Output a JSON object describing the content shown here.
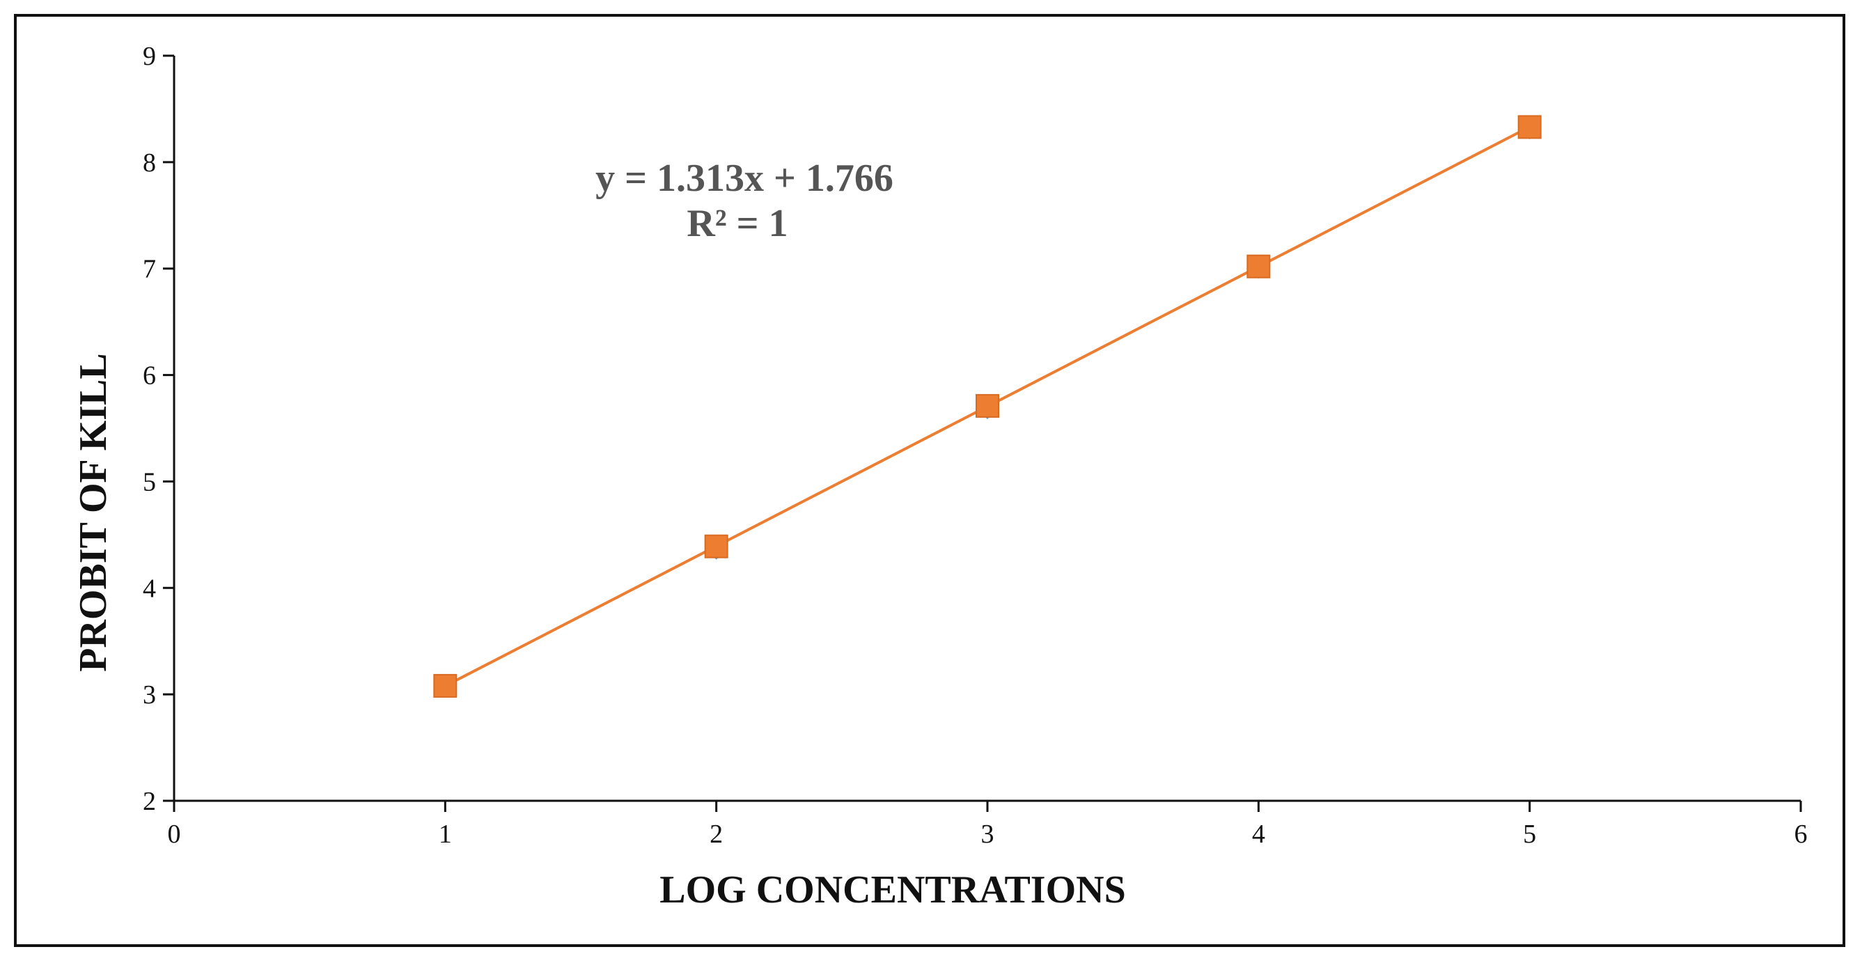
{
  "chart_data": {
    "type": "scatter",
    "xlabel": "LOG CONCENTRATIONS",
    "ylabel": "PROBIT OF KILL",
    "xlim": [
      0,
      6
    ],
    "ylim": [
      2,
      9
    ],
    "xticks": [
      "0",
      "1",
      "2",
      "3",
      "4",
      "5",
      "6"
    ],
    "yticks": [
      "2",
      "3",
      "4",
      "5",
      "6",
      "7",
      "8",
      "9"
    ],
    "grid": false,
    "legend": "none",
    "series": [
      {
        "marker": "diamond",
        "color": "#5b9bd5",
        "x": [
          1,
          2,
          3,
          4,
          5
        ],
        "y": [
          3.08,
          4.37,
          5.69,
          7.01,
          8.32
        ]
      },
      {
        "marker": "square",
        "color": "#ed7d31",
        "line": true,
        "x": [
          1,
          2,
          3,
          4,
          5
        ],
        "y": [
          3.08,
          4.39,
          5.71,
          7.02,
          8.33
        ]
      }
    ],
    "trendline": {
      "equation": "y = 1.313x + 1.766",
      "r_squared": "R² = 1",
      "slope": 1.313,
      "intercept": 1.766,
      "color": "#ed7d31"
    }
  }
}
